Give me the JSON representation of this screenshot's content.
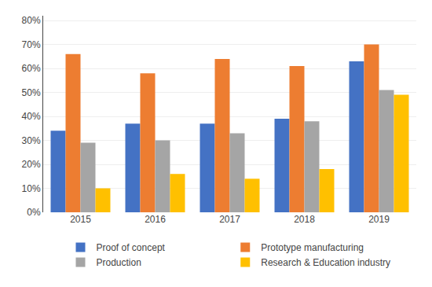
{
  "chart_data": {
    "type": "bar",
    "categories": [
      "2015",
      "2016",
      "2017",
      "2018",
      "2019"
    ],
    "series": [
      {
        "name": "Proof of concept",
        "color": "#4472C4",
        "values": [
          0.34,
          0.37,
          0.37,
          0.39,
          0.63
        ]
      },
      {
        "name": "Prototype manufacturing",
        "color": "#ED7D31",
        "values": [
          0.66,
          0.58,
          0.64,
          0.61,
          0.7
        ]
      },
      {
        "name": "Production",
        "color": "#A5A5A5",
        "values": [
          0.29,
          0.3,
          0.33,
          0.38,
          0.51
        ]
      },
      {
        "name": "Research & Education industry",
        "color": "#FFC000",
        "values": [
          0.1,
          0.16,
          0.14,
          0.18,
          0.49
        ]
      }
    ],
    "ylim": [
      0,
      0.82
    ],
    "yticks": [
      {
        "value": 0.0,
        "label": "0%"
      },
      {
        "value": 0.1,
        "label": "10%"
      },
      {
        "value": 0.2,
        "label": "20%"
      },
      {
        "value": 0.3,
        "label": "30%"
      },
      {
        "value": 0.4,
        "label": "40%"
      },
      {
        "value": 0.5,
        "label": "50%"
      },
      {
        "value": 0.6,
        "label": "60%"
      },
      {
        "value": 0.7,
        "label": "70%"
      },
      {
        "value": 0.8,
        "label": "80%"
      }
    ],
    "grid": true,
    "legend": "bottom",
    "stacked": false
  }
}
